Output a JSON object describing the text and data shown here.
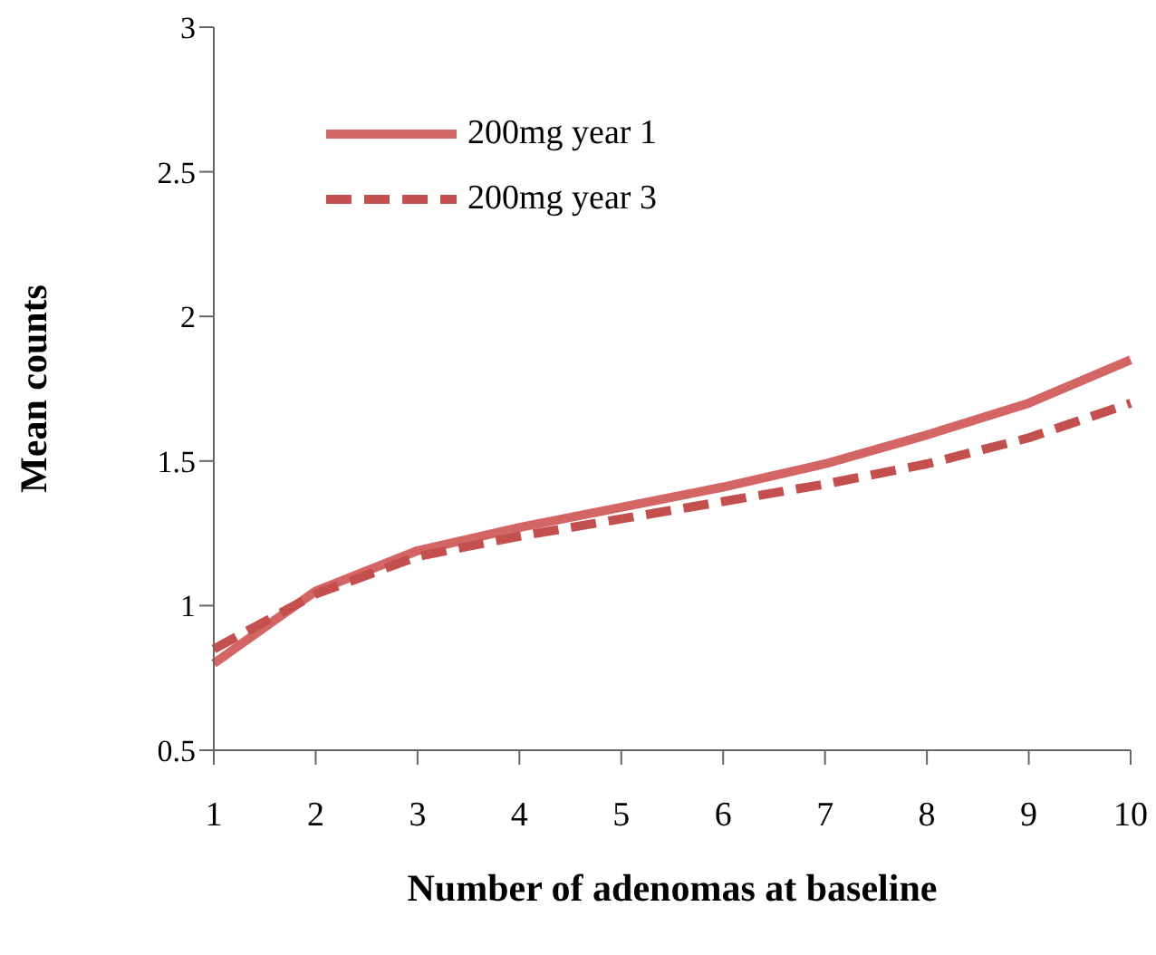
{
  "chart_data": {
    "type": "line",
    "xlabel": "Number of adenomas at baseline",
    "ylabel": "Mean counts",
    "categories": [
      "1",
      "2",
      "3",
      "4",
      "5",
      "6",
      "7",
      "8",
      "9",
      "10"
    ],
    "series": [
      {
        "name": "200mg year 1",
        "color": "#d46565",
        "line_style": "solid",
        "values": [
          0.8,
          1.05,
          1.19,
          1.27,
          1.34,
          1.41,
          1.49,
          1.59,
          1.7,
          1.85
        ]
      },
      {
        "name": "200mg year 3",
        "color": "#c44f4f",
        "line_style": "dashed",
        "values": [
          0.85,
          1.04,
          1.17,
          1.24,
          1.3,
          1.36,
          1.42,
          1.49,
          1.58,
          1.7
        ]
      }
    ],
    "ylim": [
      0.5,
      3
    ],
    "yticks": [
      0.5,
      1,
      1.5,
      2,
      2.5,
      3
    ],
    "grid": false,
    "legend": "top left",
    "marker": "none"
  }
}
